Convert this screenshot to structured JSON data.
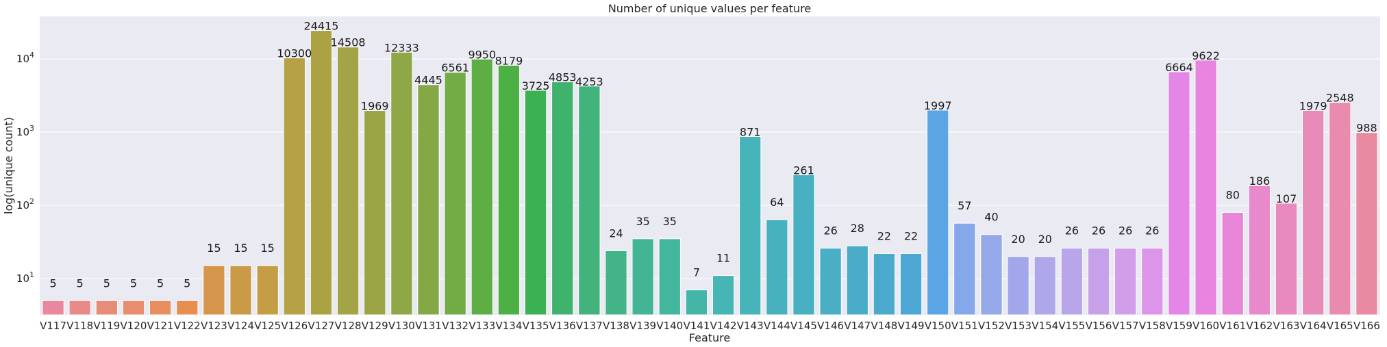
{
  "chart_data": {
    "type": "bar",
    "title": "Number of unique values per feature",
    "xlabel": "Feature",
    "ylabel": "log(unique count)",
    "yscale": "log",
    "ylim": [
      3.2,
      38000
    ],
    "y_ticks": [
      {
        "value": 10,
        "base": "10",
        "exp": "1"
      },
      {
        "value": 100,
        "base": "10",
        "exp": "2"
      },
      {
        "value": 1000,
        "base": "10",
        "exp": "3"
      },
      {
        "value": 10000,
        "base": "10",
        "exp": "4"
      }
    ],
    "grid": true,
    "categories": [
      "V117",
      "V118",
      "V119",
      "V120",
      "V121",
      "V122",
      "V123",
      "V124",
      "V125",
      "V126",
      "V127",
      "V128",
      "V129",
      "V130",
      "V131",
      "V132",
      "V133",
      "V134",
      "V135",
      "V136",
      "V137",
      "V138",
      "V139",
      "V140",
      "V141",
      "V142",
      "V143",
      "V144",
      "V145",
      "V146",
      "V147",
      "V148",
      "V149",
      "V150",
      "V151",
      "V152",
      "V153",
      "V154",
      "V155",
      "V156",
      "V157",
      "V158",
      "V159",
      "V160",
      "V161",
      "V162",
      "V163",
      "V164",
      "V165",
      "V166"
    ],
    "values": [
      5,
      5,
      5,
      5,
      5,
      5,
      15,
      15,
      15,
      10300,
      24415,
      14508,
      1969,
      12333,
      4445,
      6561,
      9950,
      8179,
      3725,
      4853,
      4253,
      24,
      35,
      35,
      7,
      11,
      871,
      64,
      261,
      26,
      28,
      22,
      22,
      1997,
      57,
      40,
      20,
      20,
      26,
      26,
      26,
      26,
      6664,
      9622,
      80,
      186,
      107,
      1979,
      2548,
      988
    ],
    "labels": [
      "5",
      "5",
      "5",
      "5",
      "5",
      "5",
      "15",
      "15",
      "15",
      "10300",
      "24415",
      "14508",
      "1969",
      "12333",
      "4445",
      "6561",
      "9950",
      "8179",
      "3725",
      "4853",
      "4253",
      "24",
      "35",
      "35",
      "7",
      "11",
      "871",
      "64",
      "261",
      "26",
      "28",
      "22",
      "22",
      "1997",
      "57",
      "40",
      "20",
      "20",
      "26",
      "26",
      "26",
      "26",
      "6664",
      "9622",
      "80",
      "186",
      "107",
      "1979",
      "2548",
      "988"
    ],
    "colors": [
      "#e8879d",
      "#e88a8a",
      "#e88c7a",
      "#e88e6e",
      "#e88f60",
      "#e88f50",
      "#d5954a",
      "#c99a47",
      "#c49d44",
      "#b6a146",
      "#aba244",
      "#a3a445",
      "#9aa444",
      "#8fa746",
      "#84a846",
      "#73ab45",
      "#5dae44",
      "#4cb045",
      "#3cb153",
      "#3fb26b",
      "#42b37c",
      "#42b488",
      "#44b594",
      "#43b69e",
      "#44b6a8",
      "#46b5b3",
      "#47b4b9",
      "#47b2bd",
      "#49b0c1",
      "#4aaec5",
      "#4aacc8",
      "#4ba9ce",
      "#4da7d4",
      "#5aa5e3",
      "#85a8ea",
      "#95a8ea",
      "#a1a7ea",
      "#aea7ea",
      "#b9a5ea",
      "#c7a0ea",
      "#d29de9",
      "#dd95ea",
      "#e486e7",
      "#e785e0",
      "#e887d7",
      "#e889cc",
      "#e88ac0",
      "#e88bb8",
      "#e88bad",
      "#e88ba2"
    ]
  }
}
